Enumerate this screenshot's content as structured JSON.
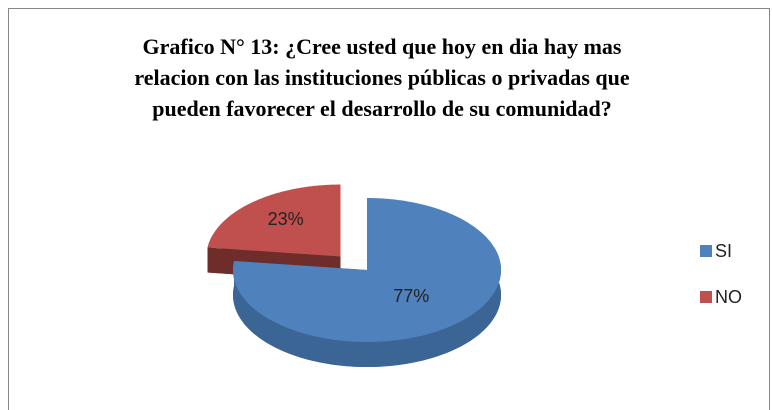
{
  "chart_data": {
    "type": "pie",
    "title": "Grafico N° 13: ¿Cree usted que hoy en dia hay mas relacion con las instituciones públicas o privadas que pueden favorecer el desarrollo de su comunidad?",
    "title_lines": [
      "Grafico N° 13: ¿Cree usted que hoy en dia hay mas",
      "relacion con las instituciones públicas o privadas que",
      "pueden favorecer el desarrollo de su comunidad?"
    ],
    "categories": [
      "SI",
      "NO"
    ],
    "values": [
      77,
      23
    ],
    "value_labels": [
      "77%",
      "23%"
    ],
    "colors": [
      "#4f81bd",
      "#c0504d"
    ],
    "side_colors": [
      "#3b6594",
      "#6e2c2a"
    ],
    "legend": "right"
  }
}
